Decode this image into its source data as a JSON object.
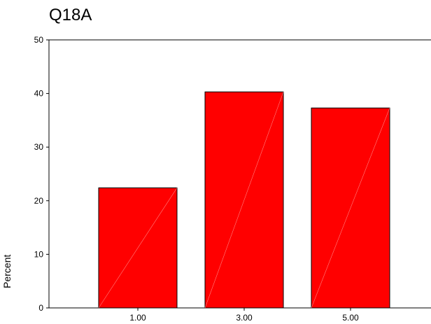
{
  "chart_data": {
    "type": "bar",
    "title": "Q18A",
    "xlabel": "",
    "ylabel": "Percent",
    "categories": [
      "1.00",
      "3.00",
      "5.00"
    ],
    "values": [
      22.4,
      40.3,
      37.3
    ],
    "ylim": [
      0,
      50
    ],
    "yticks": [
      "0",
      "10",
      "20",
      "30",
      "40",
      "50"
    ],
    "grid": false,
    "bar_color": "#ff0000",
    "bar_edge_color": "#000000",
    "background": "#ffffff"
  }
}
